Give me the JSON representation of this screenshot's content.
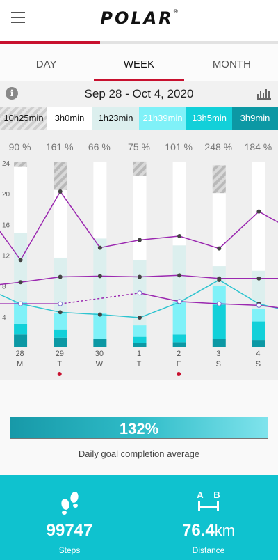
{
  "header": {
    "logo": "POLAR",
    "reg_mark": "®",
    "progress_fraction": 0.36
  },
  "tabs": [
    {
      "label": "DAY",
      "active": false
    },
    {
      "label": "WEEK",
      "active": true
    },
    {
      "label": "MONTH",
      "active": false
    }
  ],
  "date_range": "Sep 28 - Oct 4, 2020",
  "durations": [
    {
      "h": "10",
      "m": "25"
    },
    {
      "h": "3",
      "m": "0"
    },
    {
      "h": "1",
      "m": "23"
    },
    {
      "h": "21",
      "m": "39"
    },
    {
      "h": "13",
      "m": "5"
    },
    {
      "h": "3",
      "m": "9"
    }
  ],
  "duration_units": {
    "h": "h",
    "m": "min"
  },
  "chart_data": {
    "type": "bar",
    "categories": [
      "28 M",
      "29 T",
      "30 W",
      "1 T",
      "2 F",
      "3 S",
      "4 S"
    ],
    "day_numbers": [
      "28",
      "29",
      "30",
      "1",
      "2",
      "3",
      "4"
    ],
    "weekdays": [
      "M",
      "T",
      "W",
      "T",
      "F",
      "S",
      "S"
    ],
    "goal_percent": [
      90,
      161,
      66,
      75,
      101,
      248,
      184
    ],
    "ylim": [
      0,
      24
    ],
    "yticks": [
      4,
      8,
      12,
      16,
      20,
      24
    ],
    "series": [
      {
        "values": [
          1.6,
          1.2,
          1.0,
          0.5,
          0.6,
          1.0,
          0.9
        ]
      },
      {
        "values": [
          1.4,
          1.0,
          0.0,
          0.8,
          1.0,
          4.5,
          2.4
        ]
      },
      {
        "values": [
          2.9,
          2.2,
          3.4,
          1.5,
          4.2,
          2.4,
          1.6
        ]
      },
      {
        "values": [
          8.9,
          7.2,
          9.7,
          8.5,
          7.4,
          2.6,
          5.0
        ]
      },
      {
        "values": [
          8.6,
          8.8,
          9.9,
          10.9,
          10.8,
          9.5,
          14.1
        ]
      },
      {
        "values": [
          0.6,
          3.6,
          0.0,
          1.9,
          0.0,
          3.6,
          0.0
        ]
      }
    ],
    "lines": [
      {
        "color": "#9b28b0",
        "values": [
          11.3,
          20.2,
          12.9,
          13.9,
          14.4,
          12.8,
          17.6
        ],
        "edge": [
          15.0,
          16.2
        ]
      },
      {
        "color": "#9b28b0",
        "values": [
          8.4,
          9.1,
          9.2,
          9.1,
          9.3,
          8.9,
          8.9
        ],
        "edge": [
          8.1,
          8.9
        ]
      },
      {
        "color": "#2ec4d0",
        "values": [
          5.6,
          4.5,
          4.2,
          3.8,
          5.8,
          8.7,
          5.6
        ],
        "edge": [
          6.8,
          5.0
        ]
      },
      {
        "color": "#9b28b0",
        "values": [
          5.6,
          5.6,
          null,
          7.0,
          5.9,
          5.6,
          5.4
        ],
        "edge": [
          5.6,
          5.1
        ]
      }
    ],
    "markers": [
      false,
      true,
      false,
      false,
      true,
      false,
      false
    ]
  },
  "average": {
    "value": "132%",
    "label": "Daily goal completion average"
  },
  "stats": {
    "steps": {
      "value": "99747",
      "label": "Steps",
      "icon": "footprints-icon"
    },
    "distance": {
      "value": "76.4",
      "unit": "km",
      "label": "Distance",
      "icon": "a-b-distance-icon",
      "icon_text_a": "A",
      "icon_text_b": "B"
    }
  },
  "colors": {
    "brand_red": "#c8102e",
    "teal": "#0fc2cf",
    "purple": "#9b28b0"
  }
}
